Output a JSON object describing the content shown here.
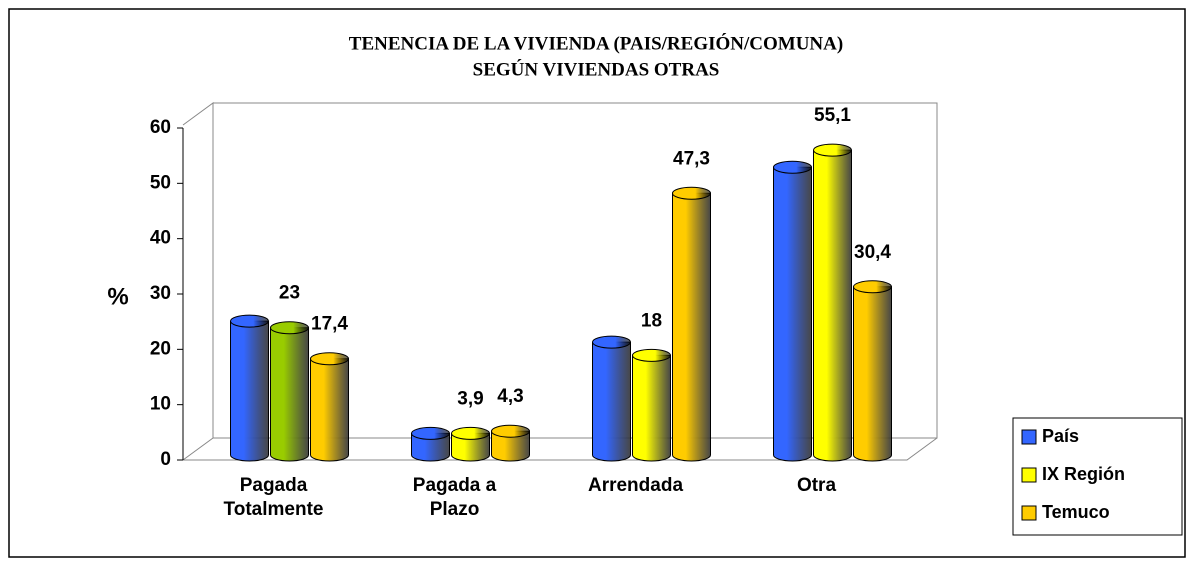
{
  "chart_data": {
    "type": "bar3d",
    "title": "TENENCIA DE LA VIVIENDA (PAIS/REGIÓN/COMUNA)",
    "subtitle": "SEGÚN VIVIENDAS OTRAS",
    "y_label": "%",
    "categories": [
      "Pagada Totalmente",
      "Pagada a Plazo",
      "Arrendada",
      "Otra"
    ],
    "series": [
      {
        "name": "País",
        "color": "#3366ff",
        "values": [
          24.2,
          3.9,
          20.4,
          52
        ]
      },
      {
        "name": "IX Región",
        "color": "#ffff00",
        "colors": [
          "#99cc00",
          "#ffff00",
          "#ffff00",
          "#ffff00"
        ],
        "values": [
          23,
          3.9,
          18,
          55.1
        ],
        "value_labels": [
          "23",
          "3,9",
          "18",
          "55,1"
        ]
      },
      {
        "name": "Temuco",
        "color": "#ffcc00",
        "values": [
          17.4,
          4.3,
          47.3,
          30.4
        ],
        "value_labels": [
          "17,4",
          "4,3",
          "47,3",
          "30,4"
        ]
      }
    ],
    "ylim": [
      0,
      60
    ],
    "yticks": [
      0,
      10,
      20,
      30,
      40,
      50,
      60
    ],
    "legend": "right"
  }
}
